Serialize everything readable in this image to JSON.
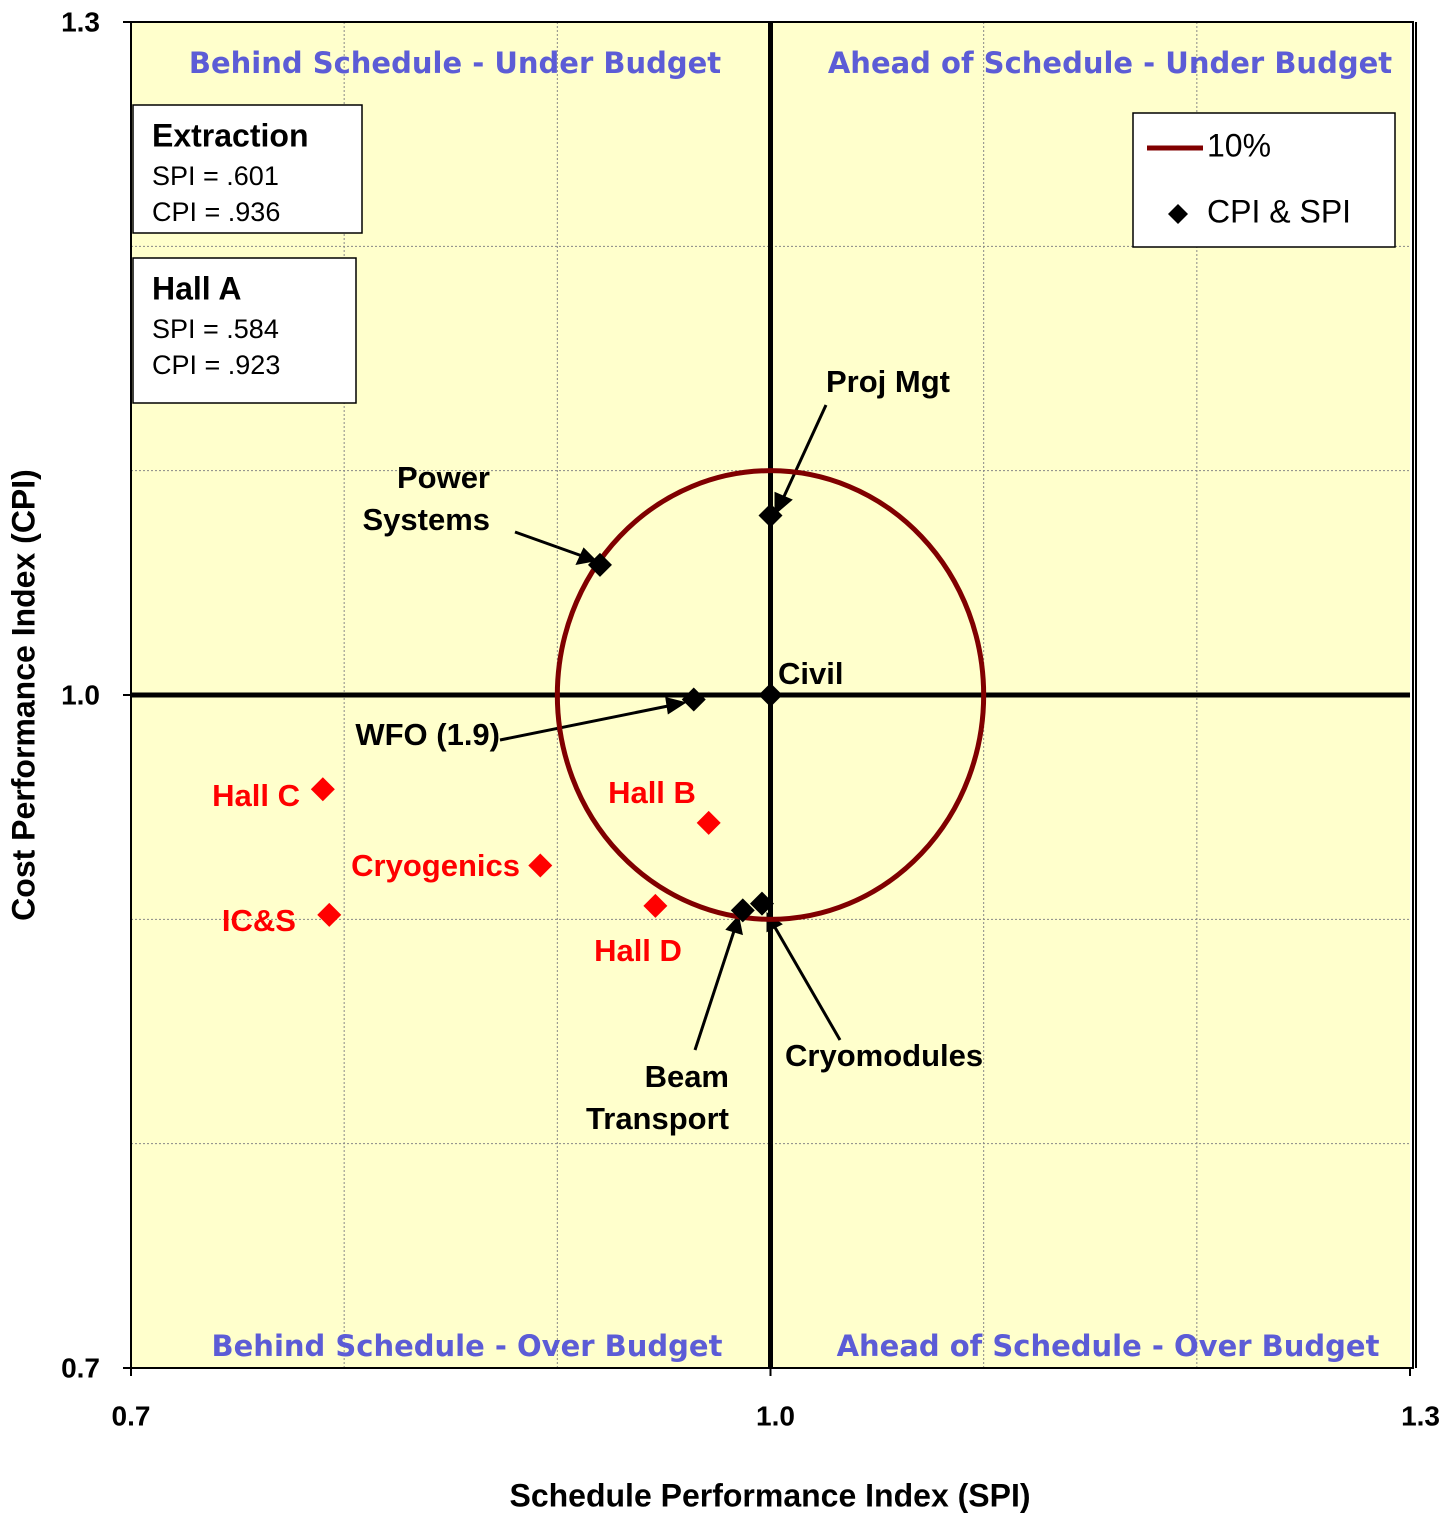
{
  "chart_data": {
    "type": "scatter",
    "xlabel": "Schedule Performance Index (SPI)",
    "ylabel": "Cost Performance Index (CPI)",
    "xlim": [
      0.7,
      1.3
    ],
    "ylim": [
      0.7,
      1.3
    ],
    "xticks": [
      0.7,
      {
        "value": 1,
        "label": "1.0"
      },
      1.3
    ],
    "yticks": [
      0.7,
      {
        "value": 1,
        "label": "1.0"
      },
      1.3
    ],
    "x_minor_grid": [
      0.8,
      0.9,
      1.1,
      1.2
    ],
    "y_minor_grid": [
      0.8,
      0.9,
      1.1,
      1.2
    ],
    "reference_lines": {
      "x": 1,
      "y": 1
    },
    "grid": true,
    "legend": "upper right",
    "series": [
      {
        "name": "10%",
        "kind": "circle",
        "color": "#800000",
        "center": [
          1,
          1
        ],
        "radius": 0.1
      },
      {
        "name": "CPI & SPI",
        "kind": "points",
        "color": "#000000",
        "labels": [
          "Proj Mgt",
          "Power Systems",
          "Civil",
          "WFO (1.9)",
          "Beam Transport",
          "Cryomodules",
          "Hall C",
          "Hall B",
          "Cryogenics",
          "IC&S",
          "Hall D"
        ],
        "x": [
          1.0,
          0.92,
          1.0,
          0.964,
          0.987,
          0.996,
          0.79,
          0.971,
          0.892,
          0.793,
          0.946
        ],
        "y": [
          1.08,
          1.058,
          1.0,
          0.998,
          0.904,
          0.907,
          0.958,
          0.943,
          0.924,
          0.902,
          0.906
        ],
        "point_colors": [
          "#000000",
          "#000000",
          "#000000",
          "#000000",
          "#000000",
          "#000000",
          "#ff0000",
          "#ff0000",
          "#ff0000",
          "#ff0000",
          "#ff0000"
        ]
      }
    ],
    "quadrant_labels": [
      "Behind Schedule - Under Budget",
      "Ahead of Schedule - Under Budget",
      "Behind Schedule - Over Budget",
      "Ahead of Schedule - Over Budget"
    ],
    "info_boxes": [
      {
        "title": "Extraction",
        "lines": [
          "SPI = .601",
          "CPI = .936"
        ]
      },
      {
        "title": "Hall A",
        "lines": [
          "SPI = .584",
          "CPI = .923"
        ]
      }
    ]
  }
}
